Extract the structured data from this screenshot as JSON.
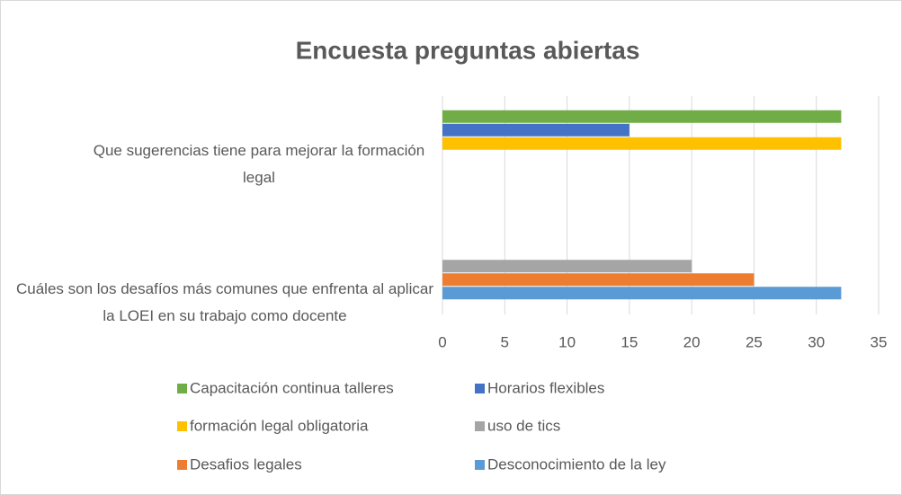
{
  "chart_data": {
    "type": "bar",
    "orientation": "horizontal",
    "title": "Encuesta preguntas abiertas",
    "categories": [
      "Que sugerencias tiene para mejorar la formación legal",
      "Cuáles son los desafíos más comunes que enfrenta al aplicar la LOEI en su trabajo como docente"
    ],
    "series": [
      {
        "name": "Capacitación continua talleres",
        "color": "#70ad47",
        "values": [
          32,
          null
        ]
      },
      {
        "name": "Horarios flexibles",
        "color": "#4472c4",
        "values": [
          15,
          null
        ]
      },
      {
        "name": "formación legal obligatoria",
        "color": "#ffc000",
        "values": [
          32,
          null
        ]
      },
      {
        "name": "uso de tics",
        "color": "#a5a5a5",
        "values": [
          null,
          20
        ]
      },
      {
        "name": "Desafios legales",
        "color": "#ed7d31",
        "values": [
          null,
          25
        ]
      },
      {
        "name": "Desconocimiento de la ley",
        "color": "#5b9bd5",
        "values": [
          null,
          32
        ]
      }
    ],
    "xlim": [
      0,
      35
    ],
    "xticks": [
      0,
      5,
      10,
      15,
      20,
      25,
      30,
      35
    ],
    "grid": true,
    "legend": "bottom"
  }
}
